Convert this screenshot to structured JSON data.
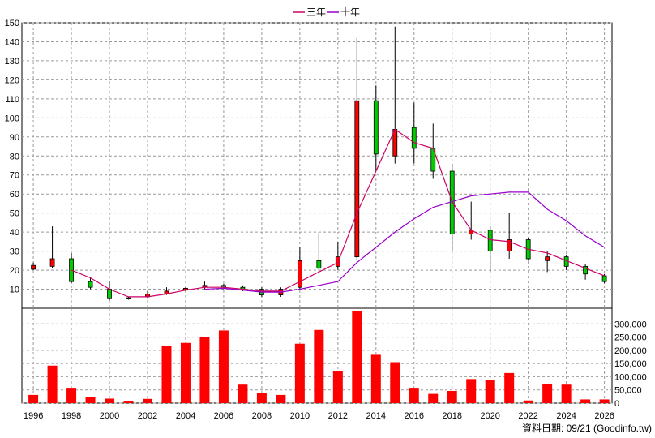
{
  "chart_data": {
    "type": "candlestick",
    "legend": {
      "items": [
        {
          "label": "三年",
          "color": "#cc0066"
        },
        {
          "label": "十年",
          "color": "#9900cc"
        }
      ],
      "placement": "top-center"
    },
    "price_axis": {
      "ylim": [
        0,
        150
      ],
      "ticks": [
        10,
        20,
        30,
        40,
        50,
        60,
        70,
        80,
        90,
        100,
        110,
        120,
        130,
        140,
        150
      ],
      "side": "left"
    },
    "volume_axis": {
      "ylim": [
        0,
        350000
      ],
      "ticks": [
        "0",
        "50,000",
        "100,000",
        "150,000",
        "200,000",
        "250,000",
        "300,000"
      ],
      "tick_values": [
        0,
        50000,
        100000,
        150000,
        200000,
        250000,
        300000
      ],
      "side": "right"
    },
    "x_ticks": [
      "1996",
      "1998",
      "2000",
      "2002",
      "2004",
      "2006",
      "2008",
      "2010",
      "2012",
      "2014",
      "2016",
      "2018",
      "2020",
      "2022",
      "2024",
      "2026"
    ],
    "x_tick_values": [
      1996,
      1998,
      2000,
      2002,
      2004,
      2006,
      2008,
      2010,
      2012,
      2014,
      2016,
      2018,
      2020,
      2022,
      2024,
      2026
    ],
    "grid": true,
    "colors": {
      "up": "#ff0000",
      "down": "#00cc00",
      "volume": "#ff0000"
    },
    "candles": [
      {
        "year": 1996,
        "open": 20.5,
        "close": 22.5,
        "high": 24,
        "low": 20
      },
      {
        "year": 1997,
        "open": 22,
        "close": 26,
        "high": 43,
        "low": 21
      },
      {
        "year": 1998,
        "open": 26,
        "close": 14,
        "high": 29,
        "low": 13
      },
      {
        "year": 1999,
        "open": 14,
        "close": 11,
        "high": 16,
        "low": 10
      },
      {
        "year": 2000,
        "open": 10,
        "close": 5,
        "high": 14,
        "low": 4
      },
      {
        "year": 2001,
        "open": 5.5,
        "close": 5,
        "high": 6,
        "low": 4.5
      },
      {
        "year": 2002,
        "open": 6,
        "close": 7.5,
        "high": 9,
        "low": 5
      },
      {
        "year": 2003,
        "open": 7.5,
        "close": 9,
        "high": 11,
        "low": 7
      },
      {
        "year": 2004,
        "open": 9.5,
        "close": 10.5,
        "high": 11,
        "low": 9
      },
      {
        "year": 2005,
        "open": 11,
        "close": 12,
        "high": 14,
        "low": 10
      },
      {
        "year": 2006,
        "open": 12,
        "close": 11,
        "high": 13,
        "low": 10
      },
      {
        "year": 2007,
        "open": 11,
        "close": 10,
        "high": 12,
        "low": 9
      },
      {
        "year": 2008,
        "open": 10,
        "close": 7,
        "high": 11,
        "low": 6
      },
      {
        "year": 2009,
        "open": 7,
        "close": 10,
        "high": 11,
        "low": 6
      },
      {
        "year": 2010,
        "open": 11,
        "close": 25,
        "high": 32,
        "low": 10
      },
      {
        "year": 2011,
        "open": 25,
        "close": 21,
        "high": 40,
        "low": 18
      },
      {
        "year": 2012,
        "open": 22,
        "close": 27,
        "high": 35,
        "low": 20
      },
      {
        "year": 2013,
        "open": 27,
        "close": 109,
        "high": 142,
        "low": 25
      },
      {
        "year": 2014,
        "open": 109,
        "close": 81,
        "high": 117,
        "low": 72
      },
      {
        "year": 2015,
        "open": 80,
        "close": 94,
        "high": 148,
        "low": 76
      },
      {
        "year": 2016,
        "open": 95,
        "close": 84,
        "high": 108,
        "low": 76
      },
      {
        "year": 2017,
        "open": 84,
        "close": 72,
        "high": 97,
        "low": 68
      },
      {
        "year": 2018,
        "open": 72,
        "close": 39,
        "high": 76,
        "low": 30
      },
      {
        "year": 2019,
        "open": 39,
        "close": 41,
        "high": 56,
        "low": 36
      },
      {
        "year": 2020,
        "open": 41,
        "close": 30,
        "high": 43,
        "low": 19
      },
      {
        "year": 2021,
        "open": 30,
        "close": 36,
        "high": 50,
        "low": 26
      },
      {
        "year": 2022,
        "open": 36,
        "close": 26,
        "high": 37,
        "low": 25
      },
      {
        "year": 2023,
        "open": 25,
        "close": 27,
        "high": 30,
        "low": 19
      },
      {
        "year": 2024,
        "open": 27,
        "close": 22,
        "high": 28,
        "low": 20
      },
      {
        "year": 2025,
        "open": 22,
        "close": 18,
        "high": 23,
        "low": 15
      },
      {
        "year": 2026,
        "open": 17,
        "close": 14,
        "high": 18,
        "low": 13
      }
    ],
    "volumes": [
      {
        "year": 1996,
        "value": 31000
      },
      {
        "year": 1997,
        "value": 142000
      },
      {
        "year": 1998,
        "value": 58000
      },
      {
        "year": 1999,
        "value": 22000
      },
      {
        "year": 2000,
        "value": 17000
      },
      {
        "year": 2001,
        "value": 6000
      },
      {
        "year": 2002,
        "value": 16000
      },
      {
        "year": 2003,
        "value": 215000
      },
      {
        "year": 2004,
        "value": 228000
      },
      {
        "year": 2005,
        "value": 250000
      },
      {
        "year": 2006,
        "value": 275000
      },
      {
        "year": 2007,
        "value": 70000
      },
      {
        "year": 2008,
        "value": 38000
      },
      {
        "year": 2009,
        "value": 31000
      },
      {
        "year": 2010,
        "value": 225000
      },
      {
        "year": 2011,
        "value": 277000
      },
      {
        "year": 2012,
        "value": 120000
      },
      {
        "year": 2013,
        "value": 350000
      },
      {
        "year": 2014,
        "value": 183000
      },
      {
        "year": 2015,
        "value": 155000
      },
      {
        "year": 2016,
        "value": 58000
      },
      {
        "year": 2017,
        "value": 35000
      },
      {
        "year": 2018,
        "value": 46000
      },
      {
        "year": 2019,
        "value": 91000
      },
      {
        "year": 2020,
        "value": 86000
      },
      {
        "year": 2021,
        "value": 114000
      },
      {
        "year": 2022,
        "value": 10000
      },
      {
        "year": 2023,
        "value": 73000
      },
      {
        "year": 2024,
        "value": 70000
      },
      {
        "year": 2025,
        "value": 14000
      },
      {
        "year": 2026,
        "value": 14000
      }
    ],
    "series": [
      {
        "name": "三年",
        "color": "#cc0066",
        "points": [
          [
            1998,
            20
          ],
          [
            1999,
            16
          ],
          [
            2000,
            10
          ],
          [
            2001,
            6
          ],
          [
            2002,
            6
          ],
          [
            2003,
            7.5
          ],
          [
            2004,
            9.5
          ],
          [
            2005,
            11
          ],
          [
            2006,
            11
          ],
          [
            2007,
            10
          ],
          [
            2008,
            9
          ],
          [
            2009,
            9
          ],
          [
            2010,
            14
          ],
          [
            2011,
            19
          ],
          [
            2012,
            24
          ],
          [
            2013,
            50
          ],
          [
            2014,
            72
          ],
          [
            2015,
            94
          ],
          [
            2016,
            87
          ],
          [
            2017,
            84
          ],
          [
            2018,
            56
          ],
          [
            2019,
            41
          ],
          [
            2020,
            36
          ],
          [
            2021,
            35
          ],
          [
            2022,
            31
          ],
          [
            2023,
            29
          ],
          [
            2024,
            25
          ],
          [
            2025,
            21
          ],
          [
            2026,
            17
          ]
        ]
      },
      {
        "name": "十年",
        "color": "#9900cc",
        "points": [
          [
            2005,
            10
          ],
          [
            2006,
            10.5
          ],
          [
            2007,
            9.5
          ],
          [
            2008,
            8.5
          ],
          [
            2009,
            8.5
          ],
          [
            2010,
            10
          ],
          [
            2011,
            12
          ],
          [
            2012,
            14
          ],
          [
            2013,
            24
          ],
          [
            2014,
            32
          ],
          [
            2015,
            40
          ],
          [
            2016,
            47
          ],
          [
            2017,
            53
          ],
          [
            2018,
            56
          ],
          [
            2019,
            59
          ],
          [
            2020,
            60
          ],
          [
            2021,
            61
          ],
          [
            2022,
            61
          ],
          [
            2023,
            52
          ],
          [
            2024,
            46
          ],
          [
            2025,
            38
          ],
          [
            2026,
            32
          ]
        ]
      }
    ]
  },
  "footer": {
    "text": "資料日期: 09/21  (Goodinfo.tw)"
  }
}
